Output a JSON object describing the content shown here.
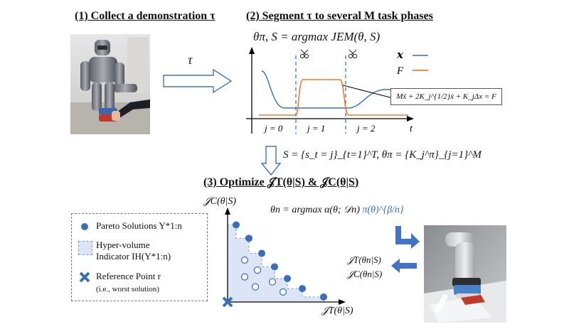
{
  "titles": {
    "step1": "(1) Collect a demonstration τ",
    "step2": "(2) Segment τ to several M task phases",
    "step3": "(3) Optimize 𝒥T(θ|S) & 𝒥C(θ|S)"
  },
  "arrow_label": "τ",
  "segment": {
    "objective": "θπ, S = argmax JEM(θ, S)",
    "legend_x": "𝒙",
    "legend_F": "F",
    "phases": [
      "j = 0",
      "j = 1",
      "j = 2"
    ],
    "t_label": "t",
    "impedance_eq": "Mẍ + 2K_j^{1/2}ẋ + K_jΔx = F",
    "result": "S = {s_t = j}_{t=1}^T,  θπ = {K_j^π}_{j=1}^M"
  },
  "optimize": {
    "acq": "θn = argmax α(θ; 𝒟n)",
    "acq_tail": "π(θ)^{β/n}",
    "y_axis": "𝒥C(θ|S)",
    "x_axis": "𝒥T(θ|S)",
    "feedback_1": "𝒥T(θn|S)",
    "feedback_2": "𝒥C(θn|S)"
  },
  "legend": {
    "pareto": "Pareto Solutions Y*1:n",
    "hv_1": "Hyper-volume",
    "hv_2": "Indicator IH(Y*1:n)",
    "ref_1": "Reference Point r",
    "ref_2": "(i.e., worst solution)"
  },
  "chart_data": {
    "type": "scatter",
    "xlabel": "𝒥T(θ|S)",
    "ylabel": "𝒥C(θ|S)",
    "pareto_points": [
      [
        0.08,
        0.92
      ],
      [
        0.2,
        0.76
      ],
      [
        0.32,
        0.58
      ],
      [
        0.44,
        0.42
      ],
      [
        0.56,
        0.28
      ],
      [
        0.7,
        0.16
      ],
      [
        0.9,
        0.06
      ]
    ],
    "dominated_points": [
      [
        0.16,
        0.5
      ],
      [
        0.16,
        0.3
      ],
      [
        0.28,
        0.38
      ],
      [
        0.26,
        0.18
      ],
      [
        0.42,
        0.24
      ],
      [
        0.52,
        0.12
      ]
    ],
    "reference_point": [
      0.0,
      0.0
    ]
  },
  "colors": {
    "x_line": "#3a6fb8",
    "F_line": "#ed7d31",
    "dot": "#3a6fb8",
    "hv_fill": "#dbe5f5",
    "arrow_blue": "#4472c4"
  }
}
